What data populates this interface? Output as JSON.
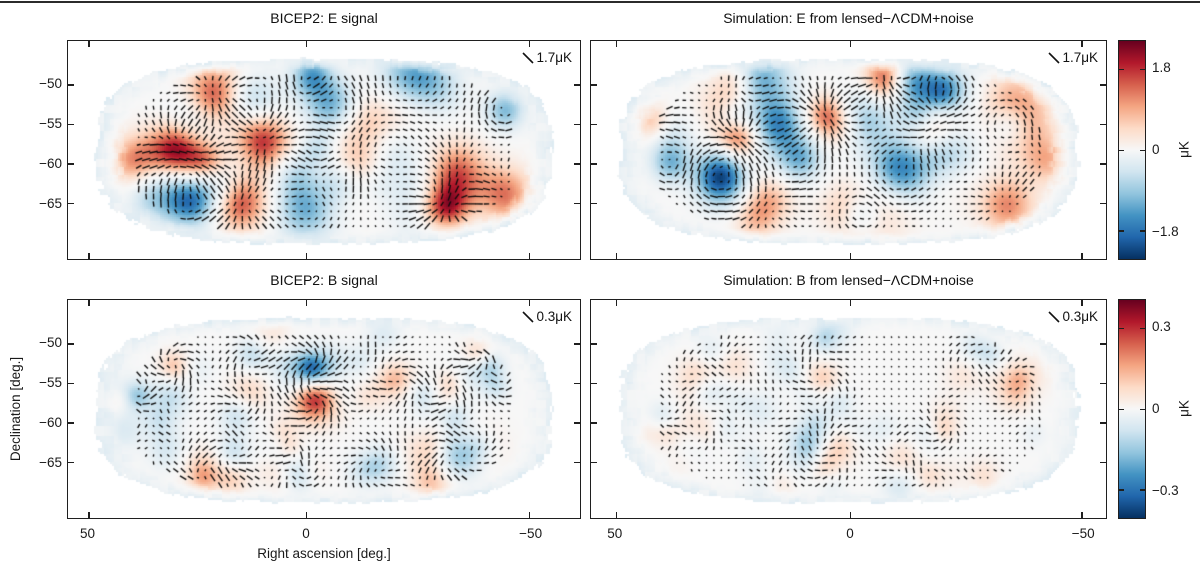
{
  "chart_data": {
    "type": "heatmap",
    "subtype": "polarization-map-with-quiver",
    "description": "Four apodized sky maps: BICEP2 E and B signal versus lensed-LCDM+noise simulations. Color shows E/B amplitude in microkelvin; short black line segments show polarization magnitude and orientation on a regular grid.",
    "x_axis": {
      "label": "Right ascension [deg.]",
      "tick_labels": [
        "50",
        "0",
        "−50"
      ]
    },
    "y_axis": {
      "label": "Declination [deg.]",
      "tick_labels": [
        "−50",
        "−55",
        "−60",
        "−65"
      ]
    },
    "panels": [
      {
        "title": "BICEP2: E signal",
        "scale_label": "1.7μK",
        "mode": "E",
        "render": {
          "seed": 11,
          "blobs": 42,
          "sigma_min": 13,
          "sigma_max": 24,
          "color_amp": 0.95,
          "vec_max": 8.5
        }
      },
      {
        "title": "Simulation: E from lensed−ΛCDM+noise",
        "scale_label": "1.7μK",
        "mode": "E",
        "render": {
          "seed": 23,
          "blobs": 42,
          "sigma_min": 13,
          "sigma_max": 24,
          "color_amp": 0.95,
          "vec_max": 8.5
        }
      },
      {
        "title": "BICEP2: B signal",
        "scale_label": "0.3μK",
        "mode": "B",
        "render": {
          "seed": 37,
          "blobs": 60,
          "sigma_min": 9,
          "sigma_max": 16,
          "color_amp": 0.8,
          "vec_max": 8.0
        }
      },
      {
        "title": "Simulation: B from lensed−ΛCDM+noise",
        "scale_label": "0.3μK",
        "mode": "B",
        "render": {
          "seed": 51,
          "blobs": 60,
          "sigma_min": 9,
          "sigma_max": 16,
          "color_amp": 0.45,
          "vec_max": 5.5
        }
      }
    ],
    "colorbars": [
      {
        "tick_labels": [
          "1.8",
          "0",
          "−1.8"
        ],
        "unit": "μK",
        "approx_range": [
          2.4,
          -2.4
        ]
      },
      {
        "tick_labels": [
          "0.3",
          "0",
          "−0.3"
        ],
        "unit": "μK",
        "approx_range": [
          0.4,
          -0.4
        ]
      }
    ],
    "colormap_stops": [
      [
        5,
        48,
        97
      ],
      [
        33,
        102,
        172
      ],
      [
        67,
        147,
        195
      ],
      [
        146,
        197,
        222
      ],
      [
        209,
        229,
        240
      ],
      [
        247,
        247,
        247
      ],
      [
        253,
        219,
        199
      ],
      [
        244,
        165,
        130
      ],
      [
        214,
        96,
        77
      ],
      [
        178,
        24,
        43
      ],
      [
        103,
        0,
        31
      ]
    ],
    "vector_color": "#0b0b0b",
    "fringe_tint": "light blue"
  }
}
